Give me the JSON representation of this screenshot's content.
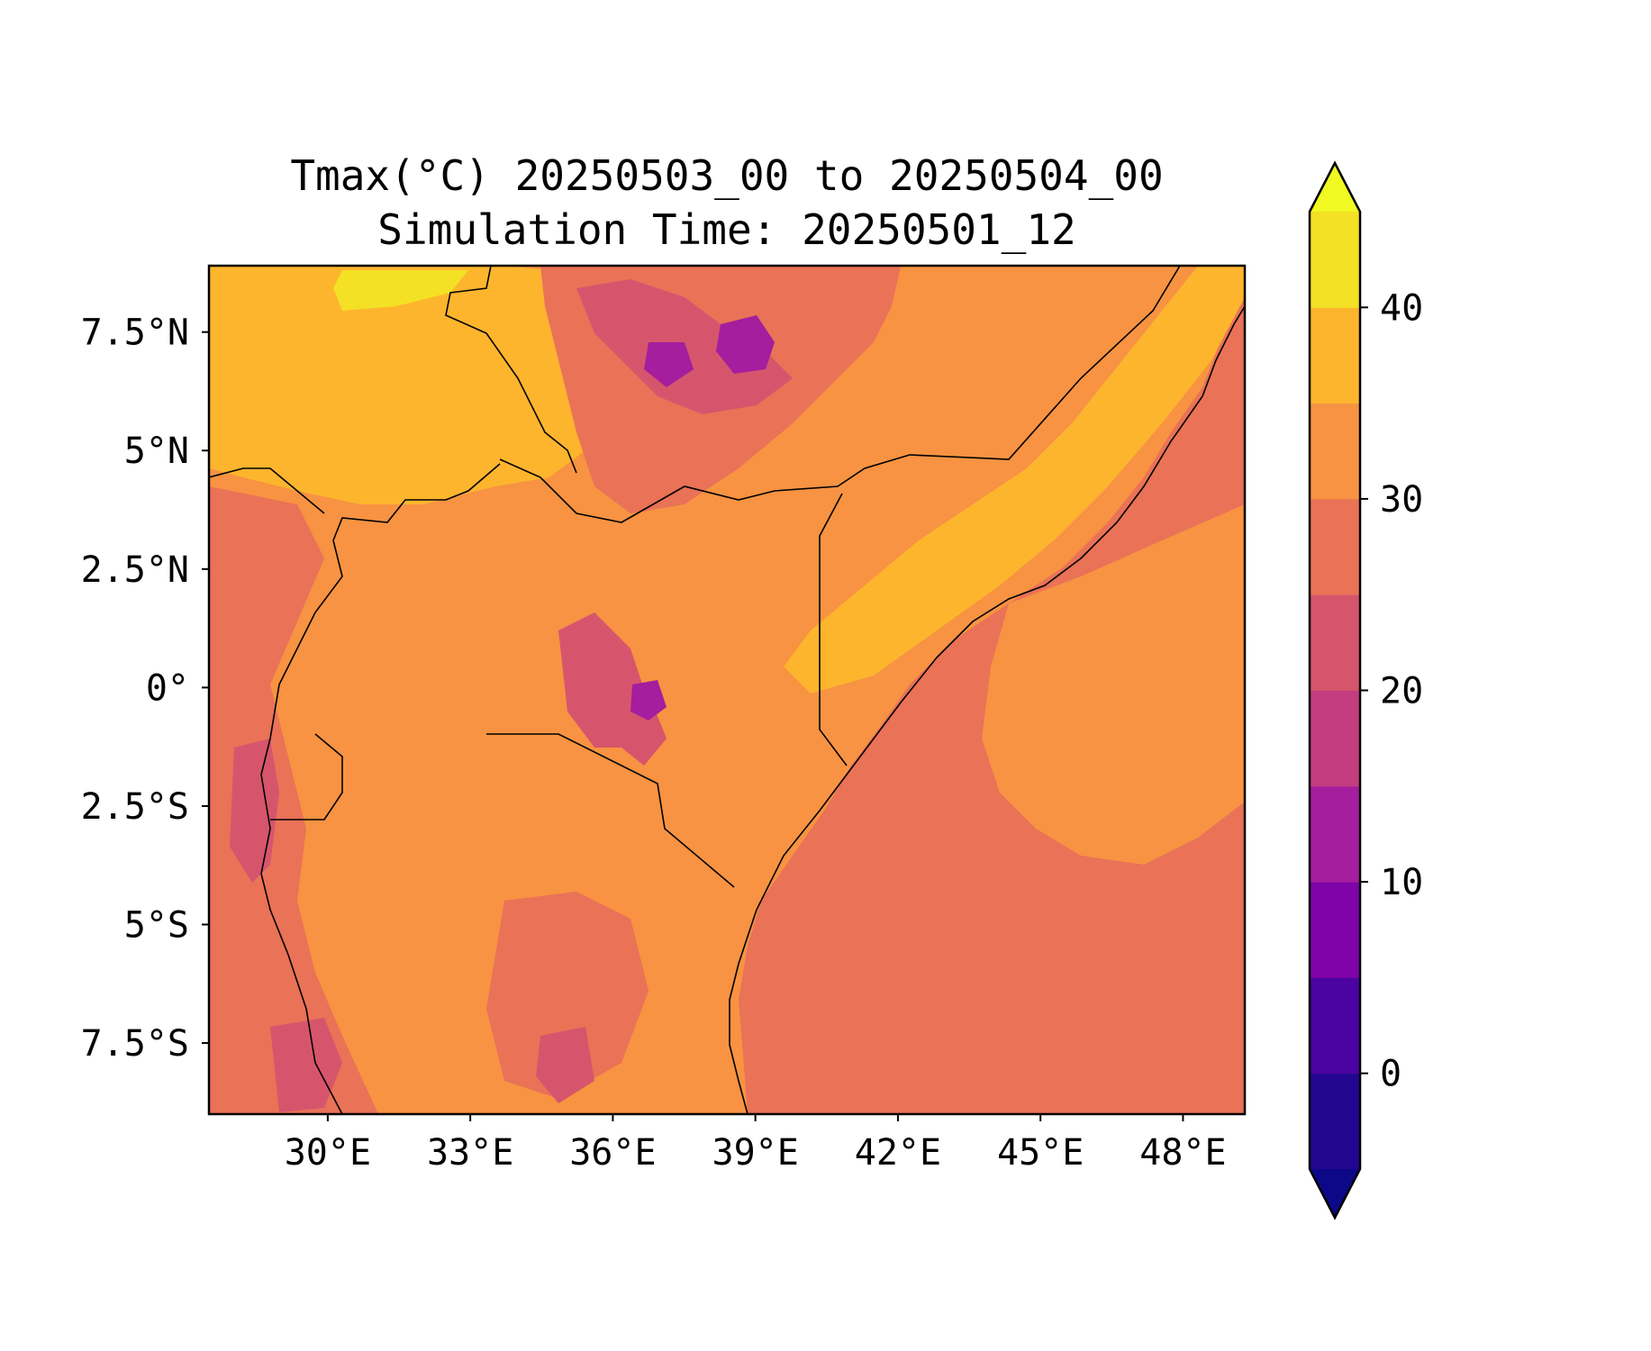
{
  "title": "Tmax(°C) 20250503_00 to 20250504_00",
  "subtitle": "Simulation Time: 20250501_12",
  "map": {
    "lon_range": [
      27.5,
      49.3
    ],
    "lat_range": [
      -9.0,
      8.9
    ],
    "lon_ticks": [
      {
        "value": 30,
        "label": "30°E"
      },
      {
        "value": 33,
        "label": "33°E"
      },
      {
        "value": 36,
        "label": "36°E"
      },
      {
        "value": 39,
        "label": "39°E"
      },
      {
        "value": 42,
        "label": "42°E"
      },
      {
        "value": 45,
        "label": "45°E"
      },
      {
        "value": 48,
        "label": "48°E"
      }
    ],
    "lat_ticks": [
      {
        "value": 7.5,
        "label": "7.5°N"
      },
      {
        "value": 5,
        "label": "5°N"
      },
      {
        "value": 2.5,
        "label": "2.5°N"
      },
      {
        "value": 0,
        "label": "0°"
      },
      {
        "value": -2.5,
        "label": "2.5°S"
      },
      {
        "value": -5,
        "label": "5°S"
      },
      {
        "value": -7.5,
        "label": "7.5°S"
      }
    ]
  },
  "colorbar": {
    "levels": [
      -5,
      0,
      5,
      10,
      15,
      20,
      25,
      30,
      35,
      40,
      45
    ],
    "colors": [
      "#23068f",
      "#4b03a1",
      "#7e03a8",
      "#a41e9e",
      "#c33d80",
      "#d6556d",
      "#e97257",
      "#f79342",
      "#fdb52e",
      "#f4e024"
    ],
    "under_color": "#0d0887",
    "over_color": "#f0f921",
    "ticks": [
      {
        "value": 0,
        "label": "0"
      },
      {
        "value": 10,
        "label": "10"
      },
      {
        "value": 20,
        "label": "20"
      },
      {
        "value": 30,
        "label": "30"
      },
      {
        "value": 40,
        "label": "40"
      }
    ]
  }
}
